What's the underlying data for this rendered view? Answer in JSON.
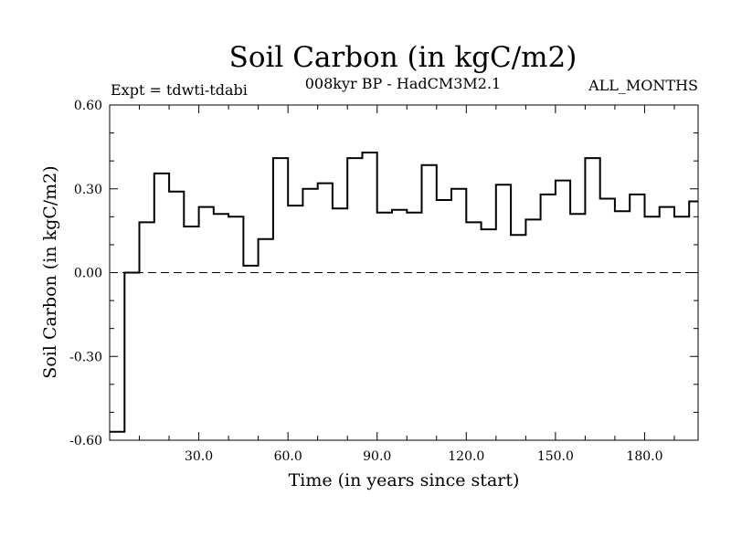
{
  "chart_data": {
    "type": "line",
    "style": "step",
    "title": "Soil Carbon (in kgC/m2)",
    "subtitle": "008kyr BP - HadCM3M2.1",
    "left_label": "Expt = tdwti-tdabi",
    "right_label": "ALL_MONTHS",
    "xlabel": "Time (in years since start)",
    "ylabel": "Soil Carbon (in kgC/m2)",
    "xlim": [
      0,
      198
    ],
    "ylim": [
      -0.6,
      0.6
    ],
    "x_ticks": [
      30,
      60,
      90,
      120,
      150,
      180
    ],
    "x_tick_labels": [
      "30.0",
      "60.0",
      "90.0",
      "120.0",
      "150.0",
      "180.0"
    ],
    "y_ticks": [
      -0.6,
      -0.3,
      0.0,
      0.3,
      0.6
    ],
    "y_tick_labels": [
      "-0.60",
      "-0.30",
      "0.00",
      "0.30",
      "0.60"
    ],
    "zero_line": "dashed",
    "step_width": 5,
    "x": [
      0,
      5,
      10,
      15,
      20,
      25,
      30,
      35,
      40,
      45,
      50,
      55,
      60,
      65,
      70,
      75,
      80,
      85,
      90,
      95,
      100,
      105,
      110,
      115,
      120,
      125,
      130,
      135,
      140,
      145,
      150,
      155,
      160,
      165,
      170,
      175,
      180,
      185,
      190,
      195
    ],
    "values": [
      -0.57,
      0.0,
      0.18,
      0.355,
      0.29,
      0.165,
      0.235,
      0.21,
      0.2,
      0.025,
      0.12,
      0.41,
      0.24,
      0.3,
      0.32,
      0.23,
      0.41,
      0.43,
      0.215,
      0.225,
      0.215,
      0.385,
      0.26,
      0.3,
      0.18,
      0.155,
      0.315,
      0.135,
      0.19,
      0.28,
      0.33,
      0.21,
      0.41,
      0.265,
      0.22,
      0.28,
      0.2,
      0.235,
      0.2,
      0.255
    ]
  }
}
